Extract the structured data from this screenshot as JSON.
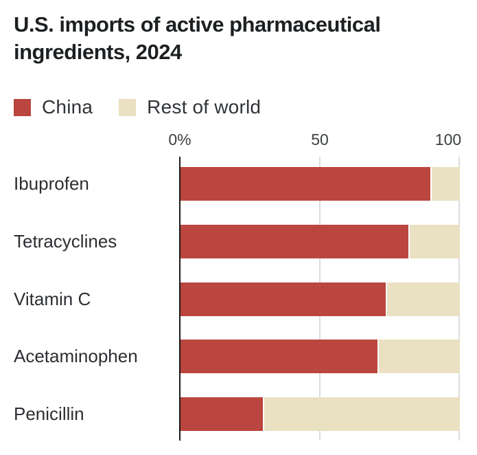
{
  "title": "U.S. imports of active pharmaceutical ingredients, 2024",
  "legend": {
    "items": [
      {
        "label": "China",
        "color": "#ba463f"
      },
      {
        "label": "Rest of world",
        "color": "#eae1c2"
      }
    ]
  },
  "axis": {
    "tick_labels": [
      "0%",
      "50",
      "100"
    ]
  },
  "chart_data": {
    "type": "bar",
    "orientation": "horizontal",
    "stacked": true,
    "title": "U.S. imports of active pharmaceutical ingredients, 2024",
    "categories": [
      "Ibuprofen",
      "Tetracyclines",
      "Vitamin C",
      "Acetaminophen",
      "Penicillin"
    ],
    "series": [
      {
        "name": "China",
        "color": "#ba463f",
        "values": [
          90,
          82,
          74,
          71,
          30
        ]
      },
      {
        "name": "Rest of world",
        "color": "#eae1c2",
        "values": [
          10,
          18,
          26,
          29,
          70
        ]
      }
    ],
    "unit": "percent",
    "xlabel": "",
    "ylabel": "",
    "xlim": [
      0,
      100
    ],
    "x_ticks": [
      0,
      50,
      100
    ],
    "x_tick_labels": [
      "0%",
      "50",
      "100"
    ],
    "grid": true,
    "legend_position": "top",
    "colors": {
      "axis_line": "#1a1a1a",
      "gridline": "#dcdcdc",
      "background": "#ffffff"
    }
  }
}
